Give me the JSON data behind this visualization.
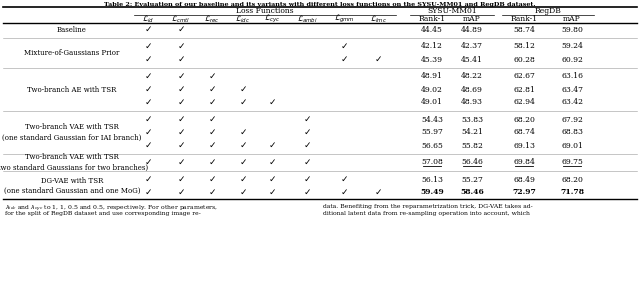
{
  "title": "Table 2: Evaluation of our baseline and its variants with different loss functions on the SYSU-MM01 and RegDB dataset.",
  "loss_labels": [
    "$\\mathcal{L}_{id}$",
    "$\\mathcal{L}_{cmtl}$",
    "$\\mathcal{L}_{rec}$",
    "$\\mathcal{L}_{idc}$",
    "$\\mathcal{L}_{cyc}$",
    "$\\mathcal{L}_{ambi}$",
    "$\\mathcal{L}_{gmm}$",
    "$\\mathcal{L}_{lmc}$"
  ],
  "result_labels": [
    "Rank-1",
    "mAP",
    "Rank-1",
    "mAP"
  ],
  "group_labels": [
    "Loss Functions",
    "SYSU-MM01",
    "RegDB"
  ],
  "rows": [
    {
      "label": "Baseline",
      "sub_rows": [
        {
          "checks": [
            1,
            1,
            0,
            0,
            0,
            0,
            0,
            0
          ],
          "values": [
            "44.45",
            "44.89",
            "58.74",
            "59.80"
          ],
          "bold": [
            0,
            0,
            0,
            0
          ],
          "underline": [
            0,
            0,
            0,
            0
          ]
        }
      ]
    },
    {
      "label": "Mixture-of-Gaussians Prior",
      "sub_rows": [
        {
          "checks": [
            1,
            1,
            0,
            0,
            0,
            0,
            1,
            0
          ],
          "values": [
            "42.12",
            "42.37",
            "58.12",
            "59.24"
          ],
          "bold": [
            0,
            0,
            0,
            0
          ],
          "underline": [
            0,
            0,
            0,
            0
          ]
        },
        {
          "checks": [
            1,
            1,
            0,
            0,
            0,
            0,
            1,
            1
          ],
          "values": [
            "45.39",
            "45.41",
            "60.28",
            "60.92"
          ],
          "bold": [
            0,
            0,
            0,
            0
          ],
          "underline": [
            0,
            0,
            0,
            0
          ]
        }
      ]
    },
    {
      "label": "Two-branch AE with TSR",
      "sub_rows": [
        {
          "checks": [
            1,
            1,
            1,
            0,
            0,
            0,
            0,
            0
          ],
          "values": [
            "48.91",
            "48.22",
            "62.67",
            "63.16"
          ],
          "bold": [
            0,
            0,
            0,
            0
          ],
          "underline": [
            0,
            0,
            0,
            0
          ]
        },
        {
          "checks": [
            1,
            1,
            1,
            1,
            0,
            0,
            0,
            0
          ],
          "values": [
            "49.02",
            "48.69",
            "62.81",
            "63.47"
          ],
          "bold": [
            0,
            0,
            0,
            0
          ],
          "underline": [
            0,
            0,
            0,
            0
          ]
        },
        {
          "checks": [
            1,
            1,
            1,
            1,
            1,
            0,
            0,
            0
          ],
          "values": [
            "49.01",
            "48.93",
            "62.94",
            "63.42"
          ],
          "bold": [
            0,
            0,
            0,
            0
          ],
          "underline": [
            0,
            0,
            0,
            0
          ]
        }
      ]
    },
    {
      "label": "Two-branch VAE with TSR\n(one standard Gaussian for IAI branch)",
      "sub_rows": [
        {
          "checks": [
            1,
            1,
            1,
            0,
            0,
            1,
            0,
            0
          ],
          "values": [
            "54.43",
            "53.83",
            "68.20",
            "67.92"
          ],
          "bold": [
            0,
            0,
            0,
            0
          ],
          "underline": [
            0,
            0,
            0,
            0
          ]
        },
        {
          "checks": [
            1,
            1,
            1,
            1,
            0,
            1,
            0,
            0
          ],
          "values": [
            "55.97",
            "54.21",
            "68.74",
            "68.83"
          ],
          "bold": [
            0,
            0,
            0,
            0
          ],
          "underline": [
            0,
            0,
            0,
            0
          ]
        },
        {
          "checks": [
            1,
            1,
            1,
            1,
            1,
            1,
            0,
            0
          ],
          "values": [
            "56.65",
            "55.82",
            "69.13",
            "69.01"
          ],
          "bold": [
            0,
            0,
            0,
            0
          ],
          "underline": [
            0,
            0,
            0,
            0
          ]
        }
      ]
    },
    {
      "label": "Two-branch VAE with TSR\n(two standard Gaussians for two branches)",
      "sub_rows": [
        {
          "checks": [
            1,
            1,
            1,
            1,
            1,
            1,
            0,
            0
          ],
          "values": [
            "57.08",
            "56.46",
            "69.84",
            "69.75"
          ],
          "bold": [
            0,
            0,
            0,
            0
          ],
          "underline": [
            1,
            1,
            1,
            1
          ]
        }
      ]
    },
    {
      "label": "DG-VAE with TSR\n(one standard Gaussian and one MoG)",
      "sub_rows": [
        {
          "checks": [
            1,
            1,
            1,
            1,
            1,
            1,
            1,
            0
          ],
          "values": [
            "56.13",
            "55.27",
            "68.49",
            "68.20"
          ],
          "bold": [
            0,
            0,
            0,
            0
          ],
          "underline": [
            0,
            0,
            0,
            0
          ]
        },
        {
          "checks": [
            1,
            1,
            1,
            1,
            1,
            1,
            1,
            1
          ],
          "values": [
            "59.49",
            "58.46",
            "72.97",
            "71.78"
          ],
          "bold": [
            1,
            1,
            1,
            1
          ],
          "underline": [
            0,
            0,
            0,
            0
          ]
        }
      ]
    }
  ],
  "footnotes": [
    [
      "$\\lambda_{idc}$ and $\\lambda_{cyc}$ to 1, 1, 0.5 and 0.5, respectively. For other parameters,",
      "data. Benefiting from the reparametrization trick, DG-VAE takes ad-"
    ],
    [
      "for the split of RegDB dataset and use corresponding image re-",
      "ditional latent data from re-sampling operation into account, which"
    ]
  ]
}
